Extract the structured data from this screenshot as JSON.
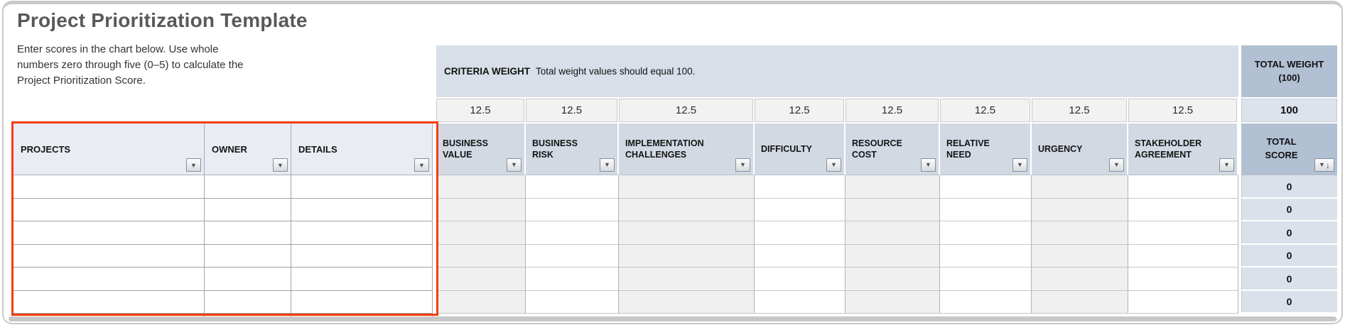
{
  "page_title": "Project Prioritization Template",
  "instructions": {
    "line1": "Enter scores in the chart below. Use whole",
    "line2": "numbers zero through five (0–5) to calculate the",
    "line3": "Project Prioritization Score."
  },
  "criteria_weight_banner": {
    "label": "CRITERIA WEIGHT",
    "note": "Total weight values should equal 100."
  },
  "total_weight": {
    "header_line1": "TOTAL WEIGHT",
    "header_line2": "(100)",
    "value": "100"
  },
  "columns": {
    "projects": "PROJECTS",
    "owner": "OWNER",
    "details": "DETAILS",
    "criteria": [
      {
        "label": "BUSINESS VALUE",
        "weight": "12.5"
      },
      {
        "label": "BUSINESS RISK",
        "weight": "12.5"
      },
      {
        "label": "IMPLEMENTATION CHALLENGES",
        "weight": "12.5"
      },
      {
        "label": "DIFFICULTY",
        "weight": "12.5"
      },
      {
        "label": "RESOURCE COST",
        "weight": "12.5"
      },
      {
        "label": "RELATIVE NEED",
        "weight": "12.5"
      },
      {
        "label": "URGENCY",
        "weight": "12.5"
      },
      {
        "label": "STAKEHOLDER AGREEMENT",
        "weight": "12.5"
      }
    ],
    "total_score": "TOTAL SCORE"
  },
  "rows": [
    {
      "projects": "",
      "owner": "",
      "details": "",
      "scores": [
        "",
        "",
        "",
        "",
        "",
        "",
        "",
        ""
      ],
      "total_score": "0"
    },
    {
      "projects": "",
      "owner": "",
      "details": "",
      "scores": [
        "",
        "",
        "",
        "",
        "",
        "",
        "",
        ""
      ],
      "total_score": "0"
    },
    {
      "projects": "",
      "owner": "",
      "details": "",
      "scores": [
        "",
        "",
        "",
        "",
        "",
        "",
        "",
        ""
      ],
      "total_score": "0"
    },
    {
      "projects": "",
      "owner": "",
      "details": "",
      "scores": [
        "",
        "",
        "",
        "",
        "",
        "",
        "",
        ""
      ],
      "total_score": "0"
    },
    {
      "projects": "",
      "owner": "",
      "details": "",
      "scores": [
        "",
        "",
        "",
        "",
        "",
        "",
        "",
        ""
      ],
      "total_score": "0"
    },
    {
      "projects": "",
      "owner": "",
      "details": "",
      "scores": [
        "",
        "",
        "",
        "",
        "",
        "",
        "",
        ""
      ],
      "total_score": "0"
    }
  ],
  "icons": {
    "filter_dropdown": "▼",
    "sort_descending": "↓"
  },
  "colors": {
    "accent_red": "#f63b0f",
    "banner_blue": "#d9dfe8",
    "header_blue": "#d2d9e3",
    "dark_header_blue": "#b1c0d3",
    "score_cell_blue": "#dbe1ea"
  }
}
